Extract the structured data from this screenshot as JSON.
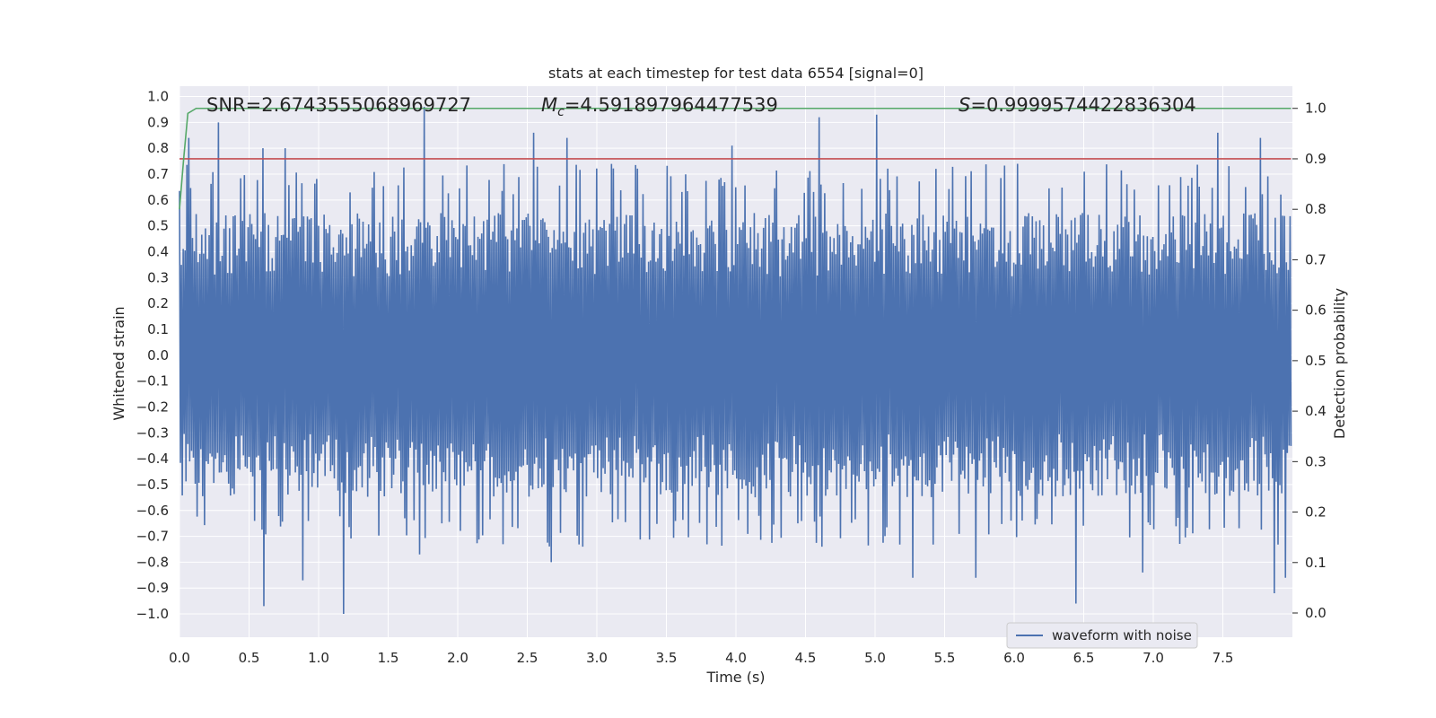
{
  "chart_data": {
    "type": "line",
    "title": "stats at each timestep for test data 6554 [signal=0]",
    "xlabel": "Time (s)",
    "ylabel": "Whitened strain",
    "y2label": "Detection probability",
    "xlim": [
      0.0,
      8.0
    ],
    "ylim": [
      -1.09,
      1.04
    ],
    "y2lim": [
      -0.048,
      1.044
    ],
    "grid": true,
    "legend_position": "bottom-right",
    "x_ticks": [
      "0.0",
      "0.5",
      "1.0",
      "1.5",
      "2.0",
      "2.5",
      "3.0",
      "3.5",
      "4.0",
      "4.5",
      "5.0",
      "5.5",
      "6.0",
      "6.5",
      "7.0",
      "7.5"
    ],
    "y_ticks": [
      "1.0",
      "0.9",
      "0.8",
      "0.7",
      "0.6",
      "0.5",
      "0.4",
      "0.3",
      "0.2",
      "0.1",
      "0.0",
      "−0.1",
      "−0.2",
      "−0.3",
      "−0.4",
      "−0.5",
      "−0.6",
      "−0.7",
      "−0.8",
      "−0.9",
      "−1.0"
    ],
    "y2_ticks": [
      "1.0",
      "0.9",
      "0.8",
      "0.7",
      "0.6",
      "0.5",
      "0.4",
      "0.3",
      "0.2",
      "0.1",
      "0.0"
    ],
    "annotations": {
      "snr": "SNR=2.6743555068969727",
      "mc_symbol": "M",
      "mc_sub": "c",
      "mc_value": "=4.591897964477539",
      "s_symbol": "S",
      "s_value": "=0.9999574422836304"
    },
    "series": [
      {
        "name": "waveform with noise",
        "axis": "left",
        "color": "#4c72b0",
        "duration": 7.99,
        "sample_count": 1200,
        "typical_range": [
          -0.55,
          0.55
        ],
        "peaks": [
          {
            "x": 0.06,
            "y": 0.84
          },
          {
            "x": 0.28,
            "y": 0.9
          },
          {
            "x": 0.6,
            "y": 0.8
          },
          {
            "x": 0.76,
            "y": 0.8
          },
          {
            "x": 1.76,
            "y": 0.96
          },
          {
            "x": 2.55,
            "y": 0.86
          },
          {
            "x": 2.78,
            "y": 0.84
          },
          {
            "x": 3.97,
            "y": 0.81
          },
          {
            "x": 4.6,
            "y": 0.92
          },
          {
            "x": 5.01,
            "y": 0.93
          },
          {
            "x": 7.47,
            "y": 0.86
          },
          {
            "x": 7.77,
            "y": 0.84
          },
          {
            "x": 0.61,
            "y": -0.97
          },
          {
            "x": 0.88,
            "y": -0.87
          },
          {
            "x": 1.18,
            "y": -1.0
          },
          {
            "x": 1.72,
            "y": -0.77
          },
          {
            "x": 2.67,
            "y": -0.8
          },
          {
            "x": 5.27,
            "y": -0.86
          },
          {
            "x": 5.72,
            "y": -0.86
          },
          {
            "x": 6.45,
            "y": -0.96
          },
          {
            "x": 6.93,
            "y": -0.84
          },
          {
            "x": 7.87,
            "y": -0.92
          },
          {
            "x": 7.95,
            "y": -0.86
          }
        ]
      },
      {
        "name": "",
        "axis": "right",
        "color": "#c44e52",
        "x": [
          0.0,
          7.99
        ],
        "y": [
          0.9,
          0.9
        ]
      },
      {
        "name": "",
        "axis": "right",
        "color": "#55a868",
        "x": [
          0.0,
          0.03,
          0.06,
          0.12,
          0.2,
          1.0,
          7.99
        ],
        "y": [
          0.8,
          0.9,
          0.99,
          1.0,
          1.0,
          1.0,
          1.0
        ]
      }
    ]
  }
}
